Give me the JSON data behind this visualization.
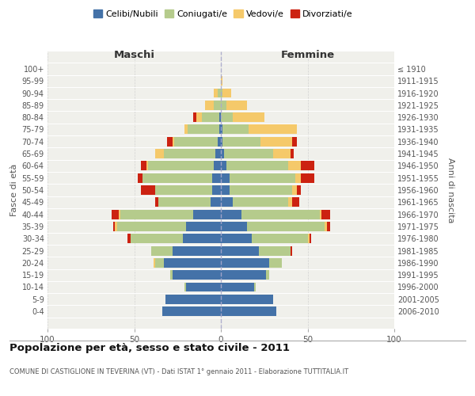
{
  "age_groups": [
    "0-4",
    "5-9",
    "10-14",
    "15-19",
    "20-24",
    "25-29",
    "30-34",
    "35-39",
    "40-44",
    "45-49",
    "50-54",
    "55-59",
    "60-64",
    "65-69",
    "70-74",
    "75-79",
    "80-84",
    "85-89",
    "90-94",
    "95-99",
    "100+"
  ],
  "birth_years": [
    "2006-2010",
    "2001-2005",
    "1996-2000",
    "1991-1995",
    "1986-1990",
    "1981-1985",
    "1976-1980",
    "1971-1975",
    "1966-1970",
    "1961-1965",
    "1956-1960",
    "1951-1955",
    "1946-1950",
    "1941-1945",
    "1936-1940",
    "1931-1935",
    "1926-1930",
    "1921-1925",
    "1916-1920",
    "1911-1915",
    "≤ 1910"
  ],
  "maschi": {
    "celibi": [
      34,
      32,
      20,
      28,
      33,
      28,
      22,
      20,
      16,
      6,
      5,
      5,
      4,
      3,
      2,
      1,
      1,
      0,
      0,
      0,
      0
    ],
    "coniugati": [
      0,
      0,
      1,
      1,
      5,
      12,
      30,
      40,
      42,
      30,
      33,
      40,
      38,
      30,
      25,
      18,
      10,
      4,
      2,
      0,
      0
    ],
    "vedovi": [
      0,
      0,
      0,
      0,
      1,
      0,
      0,
      1,
      1,
      0,
      0,
      0,
      1,
      5,
      1,
      2,
      3,
      5,
      2,
      0,
      0
    ],
    "divorziati": [
      0,
      0,
      0,
      0,
      0,
      0,
      2,
      1,
      4,
      2,
      8,
      3,
      3,
      0,
      3,
      0,
      2,
      0,
      0,
      0,
      0
    ]
  },
  "femmine": {
    "nubili": [
      32,
      30,
      19,
      26,
      28,
      22,
      18,
      15,
      12,
      7,
      5,
      5,
      3,
      2,
      1,
      1,
      0,
      0,
      0,
      0,
      0
    ],
    "coniugate": [
      0,
      0,
      1,
      2,
      7,
      18,
      32,
      45,
      45,
      32,
      36,
      38,
      36,
      28,
      22,
      15,
      7,
      3,
      1,
      0,
      0
    ],
    "vedove": [
      0,
      0,
      0,
      0,
      0,
      0,
      1,
      1,
      1,
      2,
      3,
      3,
      7,
      10,
      18,
      28,
      18,
      12,
      5,
      1,
      0
    ],
    "divorziate": [
      0,
      0,
      0,
      0,
      0,
      1,
      1,
      2,
      5,
      4,
      2,
      8,
      8,
      2,
      3,
      0,
      0,
      0,
      0,
      0,
      0
    ]
  },
  "colors": {
    "celibi": "#4472a8",
    "coniugati": "#b5cb8c",
    "vedovi": "#f5c96a",
    "divorziati": "#cc2211"
  },
  "xlim": 100,
  "title": "Popolazione per età, sesso e stato civile - 2011",
  "subtitle": "COMUNE DI CASTIGLIONE IN TEVERINA (VT) - Dati ISTAT 1° gennaio 2011 - Elaborazione TUTTITALIA.IT",
  "ylabel_left": "Fasce di età",
  "ylabel_right": "Anni di nascita",
  "xlabel_maschi": "Maschi",
  "xlabel_femmine": "Femmine",
  "legend_labels": [
    "Celibi/Nubili",
    "Coniugati/e",
    "Vedovi/e",
    "Divorziati/e"
  ]
}
